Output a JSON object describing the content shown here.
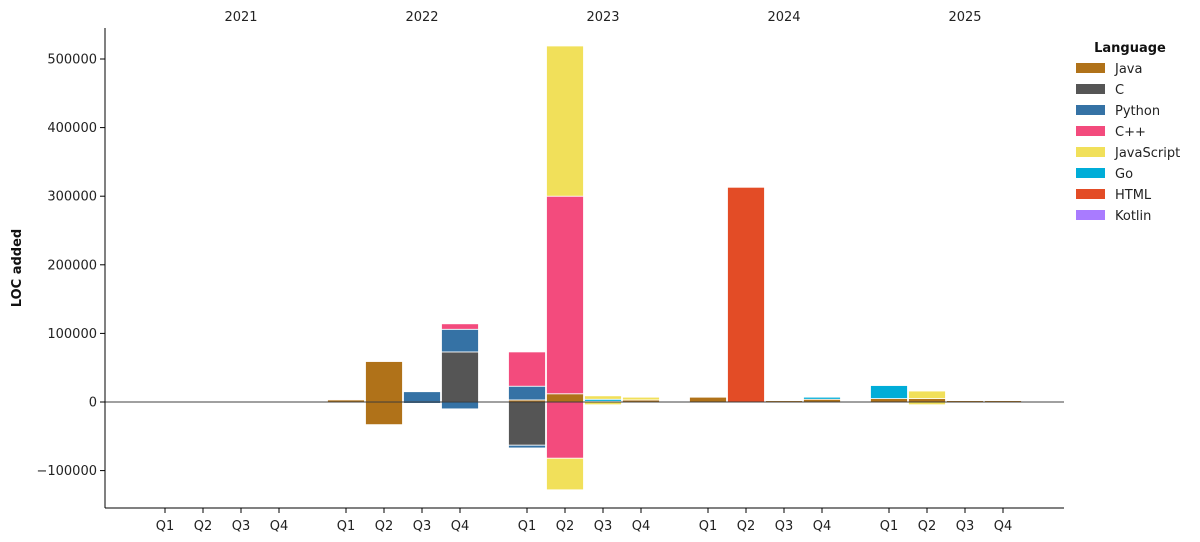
{
  "chart_data": {
    "type": "bar",
    "subtype": "stacked-diverging",
    "ylabel": "LOC added",
    "xlabel": "",
    "ylim": [
      -155000,
      545000
    ],
    "yticks": [
      -100000,
      0,
      100000,
      200000,
      300000,
      400000,
      500000
    ],
    "ytick_labels": [
      "−100000",
      "0",
      "100000",
      "200000",
      "300000",
      "400000",
      "500000"
    ],
    "years": [
      "2021",
      "2022",
      "2023",
      "2024",
      "2025"
    ],
    "quarters": [
      "Q1",
      "Q2",
      "Q3",
      "Q4"
    ],
    "legend": {
      "title": "Language",
      "position": "top-right",
      "items": [
        {
          "name": "Java",
          "color": "#b07219"
        },
        {
          "name": "C",
          "color": "#555555"
        },
        {
          "name": "Python",
          "color": "#3572a5"
        },
        {
          "name": "C++",
          "color": "#f34b7d"
        },
        {
          "name": "JavaScript",
          "color": "#f1e05a"
        },
        {
          "name": "Go",
          "color": "#00add8"
        },
        {
          "name": "HTML",
          "color": "#e34c26"
        },
        {
          "name": "Kotlin",
          "color": "#a97bff"
        }
      ]
    },
    "grid": false,
    "bars": [
      {
        "year": "2022",
        "quarter": "Q1",
        "positive": [
          {
            "lang": "Java",
            "value": 3000
          }
        ],
        "negative": []
      },
      {
        "year": "2022",
        "quarter": "Q2",
        "positive": [
          {
            "lang": "Java",
            "value": 59000
          }
        ],
        "negative": [
          {
            "lang": "Java",
            "value": -33000
          }
        ]
      },
      {
        "year": "2022",
        "quarter": "Q3",
        "positive": [
          {
            "lang": "Python",
            "value": 15000
          }
        ],
        "negative": [
          {
            "lang": "Python",
            "value": -2000
          }
        ]
      },
      {
        "year": "2022",
        "quarter": "Q4",
        "positive": [
          {
            "lang": "C",
            "value": 73000
          },
          {
            "lang": "Python",
            "value": 33000
          },
          {
            "lang": "C++",
            "value": 8000
          }
        ],
        "negative": [
          {
            "lang": "Python",
            "value": -10000
          }
        ]
      },
      {
        "year": "2023",
        "quarter": "Q1",
        "positive": [
          {
            "lang": "Java",
            "value": 3000
          },
          {
            "lang": "Python",
            "value": 20000
          },
          {
            "lang": "C++",
            "value": 50000
          }
        ],
        "negative": [
          {
            "lang": "C",
            "value": -63000
          },
          {
            "lang": "Python",
            "value": -4000
          }
        ]
      },
      {
        "year": "2023",
        "quarter": "Q2",
        "positive": [
          {
            "lang": "Java",
            "value": 12000
          },
          {
            "lang": "C++",
            "value": 288000
          },
          {
            "lang": "JavaScript",
            "value": 219000
          }
        ],
        "negative": [
          {
            "lang": "C++",
            "value": -82000
          },
          {
            "lang": "JavaScript",
            "value": -46000
          }
        ]
      },
      {
        "year": "2023",
        "quarter": "Q3",
        "positive": [
          {
            "lang": "Java",
            "value": 1000
          },
          {
            "lang": "Go",
            "value": 3000
          },
          {
            "lang": "JavaScript",
            "value": 5000
          }
        ],
        "negative": [
          {
            "lang": "JavaScript",
            "value": -4000
          }
        ]
      },
      {
        "year": "2023",
        "quarter": "Q4",
        "positive": [
          {
            "lang": "Java",
            "value": 3000
          },
          {
            "lang": "JavaScript",
            "value": 4000
          }
        ],
        "negative": []
      },
      {
        "year": "2024",
        "quarter": "Q1",
        "positive": [
          {
            "lang": "Java",
            "value": 7000
          }
        ],
        "negative": []
      },
      {
        "year": "2024",
        "quarter": "Q2",
        "positive": [
          {
            "lang": "HTML",
            "value": 313000
          }
        ],
        "negative": []
      },
      {
        "year": "2024",
        "quarter": "Q3",
        "positive": [
          {
            "lang": "Java",
            "value": 2000
          }
        ],
        "negative": [
          {
            "lang": "Java",
            "value": -1000
          }
        ]
      },
      {
        "year": "2024",
        "quarter": "Q4",
        "positive": [
          {
            "lang": "Java",
            "value": 4000
          },
          {
            "lang": "Go",
            "value": 3000
          }
        ],
        "negative": []
      },
      {
        "year": "2025",
        "quarter": "Q1",
        "positive": [
          {
            "lang": "Java",
            "value": 5000
          },
          {
            "lang": "Go",
            "value": 19000
          }
        ],
        "negative": []
      },
      {
        "year": "2025",
        "quarter": "Q2",
        "positive": [
          {
            "lang": "Java",
            "value": 5000
          },
          {
            "lang": "JavaScript",
            "value": 11000
          }
        ],
        "negative": [
          {
            "lang": "JavaScript",
            "value": -4000
          }
        ]
      },
      {
        "year": "2025",
        "quarter": "Q3",
        "positive": [
          {
            "lang": "Java",
            "value": 2000
          }
        ],
        "negative": []
      },
      {
        "year": "2025",
        "quarter": "Q4",
        "positive": [
          {
            "lang": "Java",
            "value": 2000
          }
        ],
        "negative": []
      }
    ]
  }
}
